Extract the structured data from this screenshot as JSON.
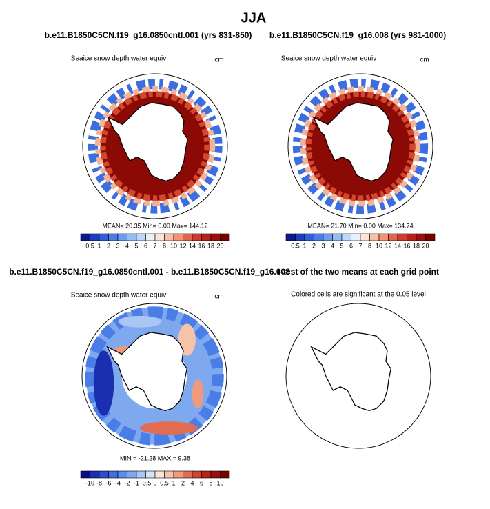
{
  "title": "JJA",
  "panels": [
    {
      "title": "b.e11.B1850C5CN.f19_g16.0850cntl.001 (yrs 831-850)",
      "subtitle": "Seaice snow depth water equiv",
      "units": "cm",
      "stats": "MEAN= 20.35 Min= 0.00 Max= 144.12"
    },
    {
      "title": "b.e11.B1850C5CN.f19_g16.008 (yrs 981-1000)",
      "subtitle": "Seaice snow depth water equiv",
      "units": "cm",
      "stats": "MEAN= 21.70 Min= 0.00 Max= 134.74"
    },
    {
      "title": "b.e11.B1850C5CN.f19_g16.0850cntl.001 - b.e11.B1850C5CN.f19_g16.008",
      "subtitle": "Seaice snow depth water equiv",
      "units": "cm",
      "stats": "MIN = -21.28 MAX = 9.38"
    },
    {
      "title": "t-test of the two means at each grid point",
      "subtitle": "Colored cells are significant at the 0.05 level"
    }
  ],
  "colorbars": [
    {
      "labels": [
        "0.5",
        "1",
        "2",
        "3",
        "4",
        "5",
        "6",
        "7",
        "8",
        "10",
        "12",
        "14",
        "16",
        "18",
        "20"
      ],
      "colors": [
        "#0b1b8a",
        "#1e3cbc",
        "#2f5ed6",
        "#4a7de6",
        "#6c9df0",
        "#94bdf5",
        "#bdd8f7",
        "#e7f0fb",
        "#fde4d6",
        "#f7bfa4",
        "#ef9475",
        "#e0654d",
        "#cf3b2b",
        "#b81f1a",
        "#9c0f0f",
        "#7a0000"
      ]
    },
    {
      "labels": [
        "0.5",
        "1",
        "2",
        "3",
        "4",
        "5",
        "6",
        "7",
        "8",
        "10",
        "12",
        "14",
        "16",
        "18",
        "20"
      ],
      "colors": [
        "#0b1b8a",
        "#1e3cbc",
        "#2f5ed6",
        "#4a7de6",
        "#6c9df0",
        "#94bdf5",
        "#bdd8f7",
        "#e7f0fb",
        "#fde4d6",
        "#f7bfa4",
        "#ef9475",
        "#e0654d",
        "#cf3b2b",
        "#b81f1a",
        "#9c0f0f",
        "#7a0000"
      ]
    },
    {
      "labels": [
        "-10",
        "-8",
        "-6",
        "-4",
        "-2",
        "-1",
        "-0.5",
        "0",
        "0.5",
        "1",
        "2",
        "4",
        "6",
        "8",
        "10"
      ],
      "colors": [
        "#0a0a8c",
        "#1a2fb0",
        "#2a4fd0",
        "#3f6fe0",
        "#5a8de8",
        "#7fa9ef",
        "#a9c6f4",
        "#d4e3f8",
        "#fbe4d6",
        "#f6c3a8",
        "#ef9a7c",
        "#e36d50",
        "#d2432f",
        "#bb2216",
        "#9e0d0d",
        "#7a0000"
      ]
    }
  ]
}
